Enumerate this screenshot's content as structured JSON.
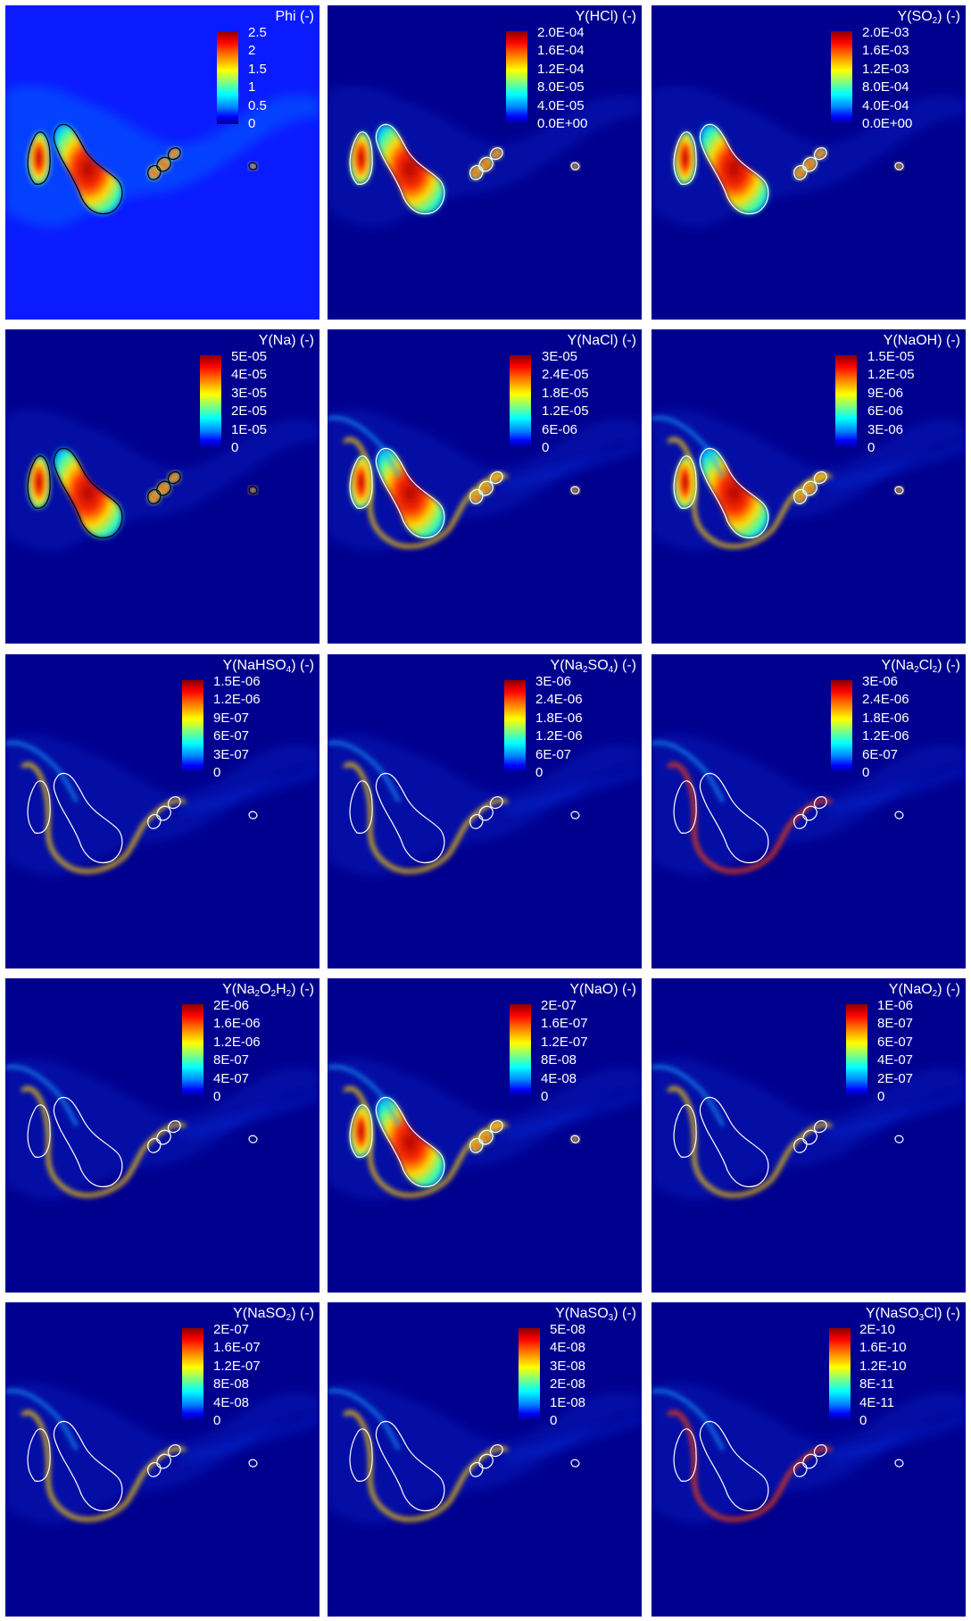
{
  "panels": [
    {
      "title_html": "Phi (-)",
      "ticks": [
        "2.5",
        "2",
        "1.5",
        "1",
        "0.5",
        "0"
      ],
      "background": "#0a1cff",
      "variant": "phi"
    },
    {
      "title_html": "Y(HCl) (-)",
      "ticks": [
        "2.0E-04",
        "1.6E-04",
        "1.2E-04",
        "8.0E-05",
        "4.0E-05",
        "0.0E+00"
      ],
      "background": "#00008f",
      "variant": "fuel"
    },
    {
      "title_html": "Y(SO<sub>2</sub>) (-)",
      "ticks": [
        "2.0E-03",
        "1.6E-03",
        "1.2E-03",
        "8.0E-04",
        "4.0E-04",
        "0.0E+00"
      ],
      "background": "#00008f",
      "variant": "fuel"
    },
    {
      "title_html": "Y(Na) (-)",
      "ticks": [
        "5E-05",
        "4E-05",
        "3E-05",
        "2E-05",
        "1E-05",
        "0"
      ],
      "background": "#00008f",
      "variant": "fuelfull"
    },
    {
      "title_html": "Y(NaCl) (-)",
      "ticks": [
        "3E-05",
        "2.4E-05",
        "1.8E-05",
        "1.2E-05",
        "6E-06",
        "0"
      ],
      "background": "#00008f",
      "variant": "mixed"
    },
    {
      "title_html": "Y(NaOH) (-)",
      "ticks": [
        "1.5E-05",
        "1.2E-05",
        "9E-06",
        "6E-06",
        "3E-06",
        "0"
      ],
      "background": "#00008f",
      "variant": "mixed2"
    },
    {
      "title_html": "Y(NaHSO<sub>4</sub>) (-)",
      "ticks": [
        "1.5E-06",
        "1.2E-06",
        "9E-07",
        "6E-07",
        "3E-07",
        "0"
      ],
      "background": "#00008f",
      "variant": "edge"
    },
    {
      "title_html": "Y(Na<sub>2</sub>SO<sub>4</sub>) (-)",
      "ticks": [
        "3E-06",
        "2.4E-06",
        "1.8E-06",
        "1.2E-06",
        "6E-07",
        "0"
      ],
      "background": "#00008f",
      "variant": "edge"
    },
    {
      "title_html": "Y(Na<sub>2</sub>Cl<sub>2</sub>) (-)",
      "ticks": [
        "3E-06",
        "2.4E-06",
        "1.8E-06",
        "1.2E-06",
        "6E-07",
        "0"
      ],
      "background": "#00008f",
      "variant": "edge2"
    },
    {
      "title_html": "Y(Na<sub>2</sub>O<sub>2</sub>H<sub>2</sub>) (-)",
      "ticks": [
        "2E-06",
        "1.6E-06",
        "1.2E-06",
        "8E-07",
        "4E-07",
        "0"
      ],
      "background": "#00008f",
      "variant": "edge"
    },
    {
      "title_html": "Y(NaO) (-)",
      "ticks": [
        "2E-07",
        "1.6E-07",
        "1.2E-07",
        "8E-08",
        "4E-08",
        "0"
      ],
      "background": "#00008f",
      "variant": "mixed"
    },
    {
      "title_html": "Y(NaO<sub>2</sub>) (-)",
      "ticks": [
        "1E-06",
        "8E-07",
        "6E-07",
        "4E-07",
        "2E-07",
        "0"
      ],
      "background": "#00008f",
      "variant": "edge"
    },
    {
      "title_html": "Y(NaSO<sub>2</sub>) (-)",
      "ticks": [
        "2E-07",
        "1.6E-07",
        "1.2E-07",
        "8E-08",
        "4E-08",
        "0"
      ],
      "background": "#00008f",
      "variant": "edge"
    },
    {
      "title_html": "Y(NaSO<sub>3</sub>) (-)",
      "ticks": [
        "5E-08",
        "4E-08",
        "3E-08",
        "2E-08",
        "1E-08",
        "0"
      ],
      "background": "#00008f",
      "variant": "edge"
    },
    {
      "title_html": "Y(NaSO<sub>3</sub>Cl) (-)",
      "ticks": [
        "2E-10",
        "1.6E-10",
        "1.2E-10",
        "8E-11",
        "4E-11",
        "0"
      ],
      "background": "#00008f",
      "variant": "edge2"
    }
  ],
  "colors": {
    "page_background": "#ffffff",
    "label_text": "#ffffff",
    "contour_black": "#000000",
    "contour_white": "#ffffff"
  }
}
